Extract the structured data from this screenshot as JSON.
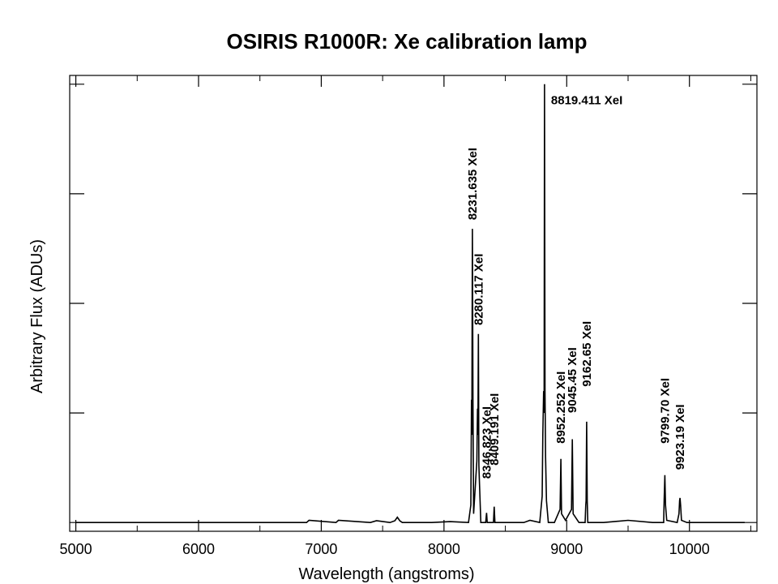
{
  "chart_data": {
    "type": "line",
    "title": "OSIRIS  R1000R:  Xe calibration lamp",
    "xlabel": "Wavelength (angstroms)",
    "ylabel": "Arbitrary Flux (ADUs)",
    "xlim": [
      4950,
      10550
    ],
    "ylim": [
      -0.02,
      1.02
    ],
    "xticks": [
      5000,
      6000,
      7000,
      8000,
      9000,
      10000
    ],
    "xtick_labels": [
      "5000",
      "6000",
      "7000",
      "8000",
      "9000",
      "10000"
    ],
    "yticks": [
      0.0,
      0.25,
      0.5,
      0.75,
      1.0
    ],
    "ytick_labels": [],
    "baseline": 0.0,
    "series": [
      {
        "name": "",
        "x": [
          5000,
          5600,
          6300,
          6880,
          6900,
          7120,
          7140,
          7400,
          7450,
          7560,
          7600,
          7620,
          7640,
          7660,
          7900,
          8050,
          8200,
          8219,
          8224,
          8227,
          8231.6,
          8236,
          8241,
          8268,
          8273,
          8276,
          8280.1,
          8284,
          8300,
          8340,
          8346.8,
          8352,
          8403,
          8409.2,
          8415,
          8550,
          8650,
          8700,
          8780,
          8800,
          8805,
          8812,
          8816,
          8819.4,
          8823,
          8828,
          8835,
          8850,
          8900,
          8946,
          8952.3,
          8958,
          8990,
          9039,
          9045.5,
          9052,
          9100,
          9150,
          9155,
          9158,
          9162.7,
          9167,
          9172,
          9200,
          9300,
          9500,
          9700,
          9790,
          9794,
          9799.7,
          9805,
          9815,
          9900,
          9915,
          9920,
          9923.2,
          9928,
          9935,
          9980,
          10300,
          10450
        ],
        "y": [
          0.0,
          0.0,
          0.0,
          0.0,
          0.005,
          0.0,
          0.005,
          0.0,
          0.004,
          0.0,
          0.004,
          0.012,
          0.004,
          0.0,
          0.0,
          0.002,
          0.0,
          0.04,
          0.28,
          0.2,
          0.67,
          0.28,
          0.02,
          0.14,
          0.26,
          0.2,
          0.43,
          0.13,
          0.0,
          0.0,
          0.022,
          0.0,
          0.0,
          0.036,
          0.0,
          0.0,
          0.0,
          0.005,
          0.0,
          0.06,
          0.2,
          0.3,
          0.25,
          1.0,
          0.3,
          0.15,
          0.05,
          0.0,
          0.0,
          0.03,
          0.145,
          0.02,
          0.005,
          0.03,
          0.19,
          0.02,
          0.0,
          0.0,
          0.04,
          0.05,
          0.23,
          0.05,
          0.0,
          0.0,
          0.0,
          0.005,
          0.0,
          0.0,
          0.05,
          0.108,
          0.04,
          0.005,
          0.0,
          0.02,
          0.05,
          0.056,
          0.04,
          0.005,
          0.0,
          0.0,
          0.0
        ]
      }
    ],
    "annotations": [
      {
        "text": "8231.635 XeI",
        "x": 8231.6,
        "y": 0.69,
        "orientation": "vertical"
      },
      {
        "text": "8280.117 XeI",
        "x": 8280.1,
        "y": 0.45,
        "orientation": "vertical"
      },
      {
        "text": "8346.823 XeI",
        "x": 8346.8,
        "y": 0.1,
        "orientation": "vertical"
      },
      {
        "text": "8409.191 XeI",
        "x": 8409.2,
        "y": 0.13,
        "orientation": "vertical"
      },
      {
        "text": "8819.411 XeI",
        "x": 8819.4,
        "y": 0.98,
        "orientation": "horizontal"
      },
      {
        "text": "8952.252 XeI",
        "x": 8952.3,
        "y": 0.18,
        "orientation": "vertical"
      },
      {
        "text": "9045.45 XeI",
        "x": 9045.5,
        "y": 0.25,
        "orientation": "vertical"
      },
      {
        "text": "9162.65 XeI",
        "x": 9162.7,
        "y": 0.31,
        "orientation": "vertical"
      },
      {
        "text": "9799.70 XeI",
        "x": 9799.7,
        "y": 0.18,
        "orientation": "vertical"
      },
      {
        "text": "9923.19 XeI",
        "x": 9923.2,
        "y": 0.12,
        "orientation": "vertical"
      }
    ],
    "grid": false,
    "legend": "none",
    "colors": {
      "line": "#000000",
      "axes": "#000000",
      "background": "#ffffff"
    }
  }
}
